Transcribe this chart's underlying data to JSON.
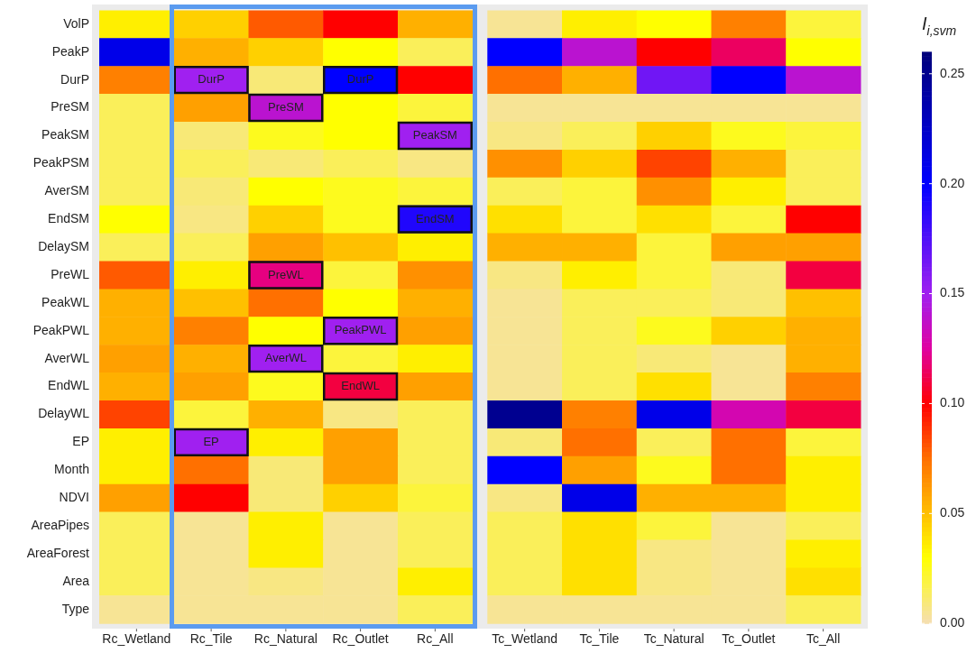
{
  "chart_data": {
    "type": "heatmap",
    "categories": [
      "Rc_Wetland",
      "Rc_Tile",
      "Rc_Natural",
      "Rc_Outlet",
      "Rc_All",
      null,
      "Tc_Wetland",
      "Tc_Tile",
      "Tc_Natural",
      "Tc_Outlet",
      "Tc_All"
    ],
    "y_categories": [
      "VolP",
      "PeakP",
      "DurP",
      "PreSM",
      "PeakSM",
      "PeakPSM",
      "AverSM",
      "EndSM",
      "DelaySM",
      "PreWL",
      "PeakWL",
      "PeakPWL",
      "AverWL",
      "EndWL",
      "DelayWL",
      "EP",
      "Month",
      "NDVI",
      "AreaPipes",
      "AreaForest",
      "Area",
      "Type"
    ],
    "cells": [
      [
        0.035,
        0.045,
        0.08,
        0.1,
        0.055,
        null,
        0.005,
        0.035,
        0.03,
        0.07,
        0.02
      ],
      [
        0.21,
        0.055,
        0.045,
        0.03,
        0.015,
        null,
        0.2,
        0.14,
        0.1,
        0.115,
        0.03
      ],
      [
        0.07,
        0.15,
        0.01,
        0.2,
        0.1,
        null,
        0.075,
        0.055,
        0.165,
        0.2,
        0.14
      ],
      [
        0.015,
        0.06,
        0.14,
        0.03,
        0.02,
        null,
        0.005,
        0.005,
        0.005,
        0.005,
        0.005
      ],
      [
        0.015,
        0.01,
        0.025,
        0.03,
        0.15,
        null,
        0.008,
        0.015,
        0.045,
        0.025,
        0.02
      ],
      [
        0.015,
        0.015,
        0.01,
        0.015,
        0.008,
        null,
        0.065,
        0.045,
        0.085,
        0.055,
        0.015
      ],
      [
        0.015,
        0.01,
        0.03,
        0.025,
        0.02,
        null,
        0.015,
        0.02,
        0.065,
        0.035,
        0.015
      ],
      [
        0.03,
        0.008,
        0.045,
        0.025,
        0.19,
        null,
        0.04,
        0.02,
        0.04,
        0.02,
        0.1
      ],
      [
        0.015,
        0.015,
        0.06,
        0.05,
        0.035,
        null,
        0.055,
        0.055,
        0.02,
        0.06,
        0.06
      ],
      [
        0.08,
        0.035,
        0.12,
        0.02,
        0.065,
        null,
        0.008,
        0.035,
        0.02,
        0.01,
        0.11
      ],
      [
        0.055,
        0.05,
        0.075,
        0.03,
        0.055,
        null,
        0.005,
        0.015,
        0.015,
        0.01,
        0.05
      ],
      [
        0.055,
        0.07,
        0.03,
        0.15,
        0.06,
        null,
        0.005,
        0.015,
        0.025,
        0.045,
        0.055
      ],
      [
        0.06,
        0.055,
        0.15,
        0.02,
        0.035,
        null,
        0.005,
        0.015,
        0.01,
        0.005,
        0.055
      ],
      [
        0.055,
        0.06,
        0.025,
        0.11,
        0.06,
        null,
        0.005,
        0.015,
        0.04,
        0.005,
        0.07
      ],
      [
        0.085,
        0.02,
        0.055,
        0.008,
        0.015,
        null,
        0.25,
        0.07,
        0.21,
        0.13,
        0.11
      ],
      [
        0.035,
        0.15,
        0.035,
        0.06,
        0.015,
        null,
        0.01,
        0.075,
        0.015,
        0.075,
        0.02
      ],
      [
        0.035,
        0.075,
        0.01,
        0.06,
        0.015,
        null,
        0.2,
        0.06,
        0.025,
        0.075,
        0.035
      ],
      [
        0.06,
        0.1,
        0.01,
        0.045,
        0.02,
        null,
        0.008,
        0.21,
        0.055,
        0.055,
        0.035
      ],
      [
        0.015,
        0.005,
        0.035,
        0.005,
        0.015,
        null,
        0.015,
        0.04,
        0.02,
        0.005,
        0.015
      ],
      [
        0.015,
        0.005,
        0.035,
        0.005,
        0.015,
        null,
        0.015,
        0.04,
        0.008,
        0.005,
        0.035
      ],
      [
        0.015,
        0.005,
        0.008,
        0.005,
        0.035,
        null,
        0.015,
        0.04,
        0.008,
        0.005,
        0.04
      ],
      [
        0.005,
        0.005,
        0.005,
        0.005,
        0.015,
        null,
        0.005,
        0.005,
        0.005,
        0.005,
        0.015
      ]
    ],
    "cell_labels": [
      [
        null,
        null,
        null,
        null,
        null,
        null,
        null,
        null,
        null,
        null,
        null
      ],
      [
        null,
        null,
        null,
        null,
        null,
        null,
        null,
        null,
        null,
        null,
        null
      ],
      [
        null,
        "DurP",
        null,
        "DurP",
        null,
        null,
        null,
        null,
        null,
        null,
        null
      ],
      [
        null,
        null,
        "PreSM",
        null,
        null,
        null,
        null,
        null,
        null,
        null,
        null
      ],
      [
        null,
        null,
        null,
        null,
        "PeakSM",
        null,
        null,
        null,
        null,
        null,
        null
      ],
      [
        null,
        null,
        null,
        null,
        null,
        null,
        null,
        null,
        null,
        null,
        null
      ],
      [
        null,
        null,
        null,
        null,
        null,
        null,
        null,
        null,
        null,
        null,
        null
      ],
      [
        null,
        null,
        null,
        null,
        "EndSM",
        null,
        null,
        null,
        null,
        null,
        null
      ],
      [
        null,
        null,
        null,
        null,
        null,
        null,
        null,
        null,
        null,
        null,
        null
      ],
      [
        null,
        null,
        "PreWL",
        null,
        null,
        null,
        null,
        null,
        null,
        null,
        null
      ],
      [
        null,
        null,
        null,
        null,
        null,
        null,
        null,
        null,
        null,
        null,
        null
      ],
      [
        null,
        null,
        null,
        "PeakPWL",
        null,
        null,
        null,
        null,
        null,
        null,
        null
      ],
      [
        null,
        null,
        "AverWL",
        null,
        null,
        null,
        null,
        null,
        null,
        null,
        null
      ],
      [
        null,
        null,
        null,
        "EndWL",
        null,
        null,
        null,
        null,
        null,
        null,
        null
      ],
      [
        null,
        null,
        null,
        null,
        null,
        null,
        null,
        null,
        null,
        null,
        null
      ],
      [
        null,
        "EP",
        null,
        null,
        null,
        null,
        null,
        null,
        null,
        null,
        null
      ],
      [
        null,
        null,
        null,
        null,
        null,
        null,
        null,
        null,
        null,
        null,
        null
      ],
      [
        null,
        null,
        null,
        null,
        null,
        null,
        null,
        null,
        null,
        null,
        null
      ],
      [
        null,
        null,
        null,
        null,
        null,
        null,
        null,
        null,
        null,
        null,
        null
      ],
      [
        null,
        null,
        null,
        null,
        null,
        null,
        null,
        null,
        null,
        null,
        null
      ],
      [
        null,
        null,
        null,
        null,
        null,
        null,
        null,
        null,
        null,
        null,
        null
      ],
      [
        null,
        null,
        null,
        null,
        null,
        null,
        null,
        null,
        null,
        null,
        null
      ]
    ],
    "clim": [
      0,
      0.26
    ],
    "cticks": [
      {
        "value": 0,
        "label": "0.00"
      },
      {
        "value": 0.05,
        "label": "0.05"
      },
      {
        "value": 0.1,
        "label": "0.10"
      },
      {
        "value": 0.15,
        "label": "0.15"
      },
      {
        "value": 0.2,
        "label": "0.20"
      },
      {
        "value": 0.25,
        "label": "0.25"
      }
    ],
    "clabel": "I$_{i,svm}$"
  }
}
